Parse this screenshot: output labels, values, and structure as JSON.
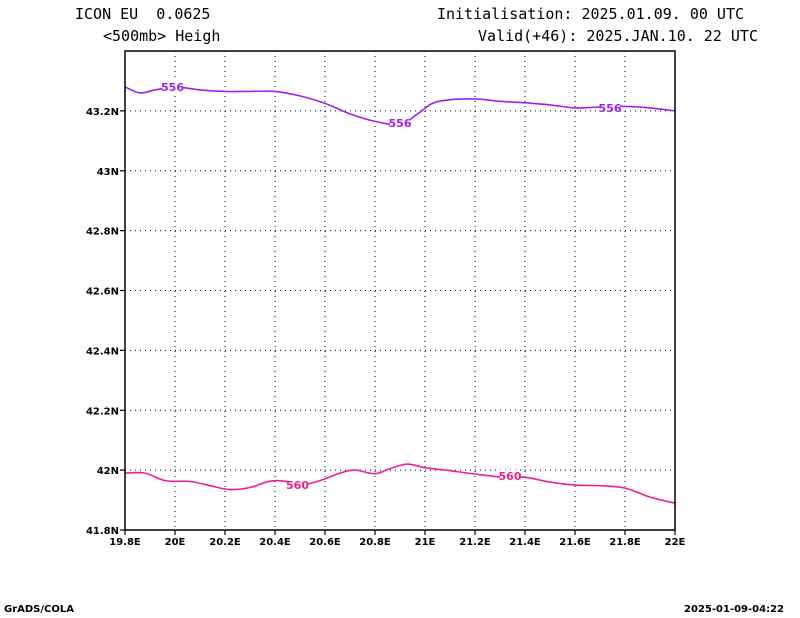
{
  "header": {
    "title": "ICON EU  0.0625",
    "variable": "<500mb> Heigh",
    "init": "Initialisation: 2025.01.09. 00 UTC",
    "valid": "Valid(+46): 2025.JAN.10. 22 UTC"
  },
  "footer": {
    "left": "GrADS/COLA",
    "right": "2025-01-09-04:22"
  },
  "chart_data": {
    "type": "line",
    "title": "",
    "xlabel": "",
    "ylabel": "",
    "xlim": [
      19.8,
      22.0
    ],
    "ylim": [
      41.8,
      43.4
    ],
    "grid": true,
    "x_ticks": [
      19.8,
      20.0,
      20.2,
      20.4,
      20.6,
      20.8,
      21.0,
      21.2,
      21.4,
      21.6,
      21.8,
      22.0
    ],
    "x_tick_labels": [
      "19.8E",
      "20E",
      "20.2E",
      "20.4E",
      "20.6E",
      "20.8E",
      "21E",
      "21.2E",
      "21.4E",
      "21.6E",
      "21.8E",
      "22E"
    ],
    "y_ticks": [
      41.8,
      42.0,
      42.2,
      42.4,
      42.6,
      42.8,
      43.0,
      43.2
    ],
    "y_tick_labels": [
      "41.8N",
      "42N",
      "42.2N",
      "42.4N",
      "42.6N",
      "42.8N",
      "43N",
      "43.2N"
    ],
    "series": [
      {
        "color": "#a020f0",
        "label": "556",
        "label_positions": [
          [
            19.99,
            43.28
          ],
          [
            20.9,
            43.16
          ],
          [
            21.74,
            43.21
          ]
        ],
        "points": [
          [
            19.8,
            43.28
          ],
          [
            19.86,
            43.26
          ],
          [
            19.92,
            43.27
          ],
          [
            20.0,
            43.28
          ],
          [
            20.1,
            43.27
          ],
          [
            20.2,
            43.265
          ],
          [
            20.3,
            43.265
          ],
          [
            20.4,
            43.265
          ],
          [
            20.5,
            43.25
          ],
          [
            20.6,
            43.225
          ],
          [
            20.7,
            43.19
          ],
          [
            20.8,
            43.165
          ],
          [
            20.9,
            43.155
          ],
          [
            20.97,
            43.19
          ],
          [
            21.03,
            43.225
          ],
          [
            21.1,
            43.237
          ],
          [
            21.2,
            43.24
          ],
          [
            21.3,
            43.232
          ],
          [
            21.4,
            43.227
          ],
          [
            21.5,
            43.22
          ],
          [
            21.6,
            43.21
          ],
          [
            21.7,
            43.213
          ],
          [
            21.8,
            43.215
          ],
          [
            21.9,
            43.21
          ],
          [
            22.0,
            43.2
          ]
        ]
      },
      {
        "color": "#f0208c",
        "label": "560",
        "label_positions": [
          [
            20.49,
            41.95
          ],
          [
            21.34,
            41.98
          ]
        ],
        "points": [
          [
            19.8,
            41.99
          ],
          [
            19.88,
            41.99
          ],
          [
            19.96,
            41.965
          ],
          [
            20.06,
            41.962
          ],
          [
            20.14,
            41.948
          ],
          [
            20.22,
            41.935
          ],
          [
            20.3,
            41.942
          ],
          [
            20.38,
            41.963
          ],
          [
            20.44,
            41.963
          ],
          [
            20.5,
            41.95
          ],
          [
            20.58,
            41.965
          ],
          [
            20.66,
            41.99
          ],
          [
            20.72,
            42.0
          ],
          [
            20.8,
            41.988
          ],
          [
            20.86,
            42.005
          ],
          [
            20.93,
            42.02
          ],
          [
            21.0,
            42.008
          ],
          [
            21.1,
            41.998
          ],
          [
            21.2,
            41.987
          ],
          [
            21.3,
            41.977
          ],
          [
            21.4,
            41.976
          ],
          [
            21.5,
            41.96
          ],
          [
            21.6,
            41.95
          ],
          [
            21.7,
            41.948
          ],
          [
            21.8,
            41.94
          ],
          [
            21.9,
            41.91
          ],
          [
            22.0,
            41.89
          ]
        ]
      }
    ]
  }
}
